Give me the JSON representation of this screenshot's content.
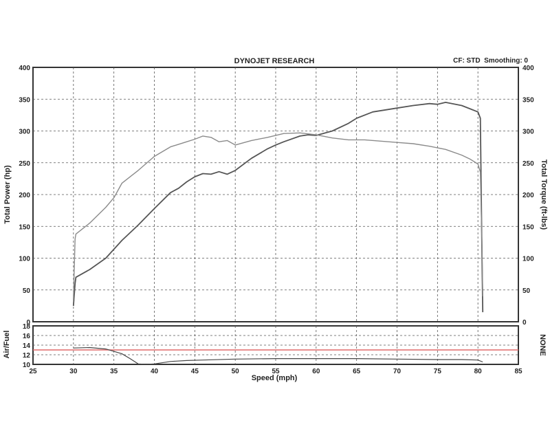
{
  "chart_data": [
    {
      "type": "line",
      "title": "DYNOJET RESEARCH",
      "header_right": "CF: STD  Smoothing: 0",
      "xlabel": "Speed (mph)",
      "ylabel": "Total Power (hp)",
      "y2label": "Total Torque (ft-lbs)",
      "xlim": [
        25,
        85
      ],
      "ylim": [
        0,
        400
      ],
      "y2lim": [
        0,
        400
      ],
      "x_ticks": [
        "25",
        "30",
        "35",
        "40",
        "45",
        "50",
        "55",
        "60",
        "65",
        "70",
        "75",
        "80",
        "85"
      ],
      "y_ticks": [
        "0",
        "50",
        "100",
        "150",
        "200",
        "250",
        "300",
        "350",
        "400"
      ],
      "y2_ticks": [
        "0",
        "50",
        "100",
        "150",
        "200",
        "250",
        "300",
        "350",
        "400"
      ],
      "grid": true,
      "series": [
        {
          "axis": "left",
          "color": "#555555",
          "points": [
            [
              30.0,
              25
            ],
            [
              30.2,
              60
            ],
            [
              30.3,
              70
            ],
            [
              32,
              82
            ],
            [
              34,
              100
            ],
            [
              36,
              128
            ],
            [
              38,
              152
            ],
            [
              40,
              178
            ],
            [
              42,
              203
            ],
            [
              43,
              210
            ],
            [
              44,
              220
            ],
            [
              45,
              228
            ],
            [
              46,
              233
            ],
            [
              47,
              232
            ],
            [
              48,
              236
            ],
            [
              49,
              232
            ],
            [
              50,
              238
            ],
            [
              52,
              257
            ],
            [
              54,
              272
            ],
            [
              55,
              278
            ],
            [
              56,
              283
            ],
            [
              58,
              292
            ],
            [
              59,
              294
            ],
            [
              60,
              293
            ],
            [
              62,
              300
            ],
            [
              64,
              312
            ],
            [
              65,
              320
            ],
            [
              67,
              330
            ],
            [
              70,
              336
            ],
            [
              72,
              340
            ],
            [
              74,
              343
            ],
            [
              75,
              342
            ],
            [
              76,
              345
            ],
            [
              78,
              340
            ],
            [
              79,
              335
            ],
            [
              80,
              330
            ],
            [
              80.3,
              320
            ],
            [
              80.5,
              100
            ],
            [
              80.6,
              15
            ]
          ]
        },
        {
          "axis": "right",
          "color": "#8a8a8a",
          "points": [
            [
              30.0,
              35
            ],
            [
              30.2,
              130
            ],
            [
              30.3,
              138
            ],
            [
              32,
              155
            ],
            [
              34,
              180
            ],
            [
              35,
              195
            ],
            [
              36,
              218
            ],
            [
              38,
              238
            ],
            [
              40,
              260
            ],
            [
              42,
              275
            ],
            [
              44,
              283
            ],
            [
              45,
              287
            ],
            [
              46,
              292
            ],
            [
              47,
              290
            ],
            [
              48,
              283
            ],
            [
              49,
              285
            ],
            [
              50,
              278
            ],
            [
              52,
              285
            ],
            [
              54,
              290
            ],
            [
              56,
              296
            ],
            [
              58,
              297
            ],
            [
              60,
              294
            ],
            [
              62,
              289
            ],
            [
              64,
              286
            ],
            [
              66,
              286
            ],
            [
              68,
              284
            ],
            [
              70,
              282
            ],
            [
              72,
              280
            ],
            [
              74,
              276
            ],
            [
              76,
              271
            ],
            [
              78,
              262
            ],
            [
              79,
              256
            ],
            [
              80,
              248
            ],
            [
              80.3,
              235
            ],
            [
              80.5,
              120
            ],
            [
              80.6,
              40
            ]
          ]
        }
      ]
    },
    {
      "type": "line",
      "ylabel": "Air/Fuel",
      "side_label": "NONE",
      "xlim": [
        25,
        85
      ],
      "ylim": [
        10,
        18
      ],
      "y_ticks": [
        "10",
        "12",
        "14",
        "16",
        "18"
      ],
      "grid": true,
      "reference_line": {
        "y": 13.0,
        "color": "#e06a6a"
      },
      "series": [
        {
          "color": "#444444",
          "points": [
            [
              30,
              13.4
            ],
            [
              32,
              13.5
            ],
            [
              34,
              13.2
            ],
            [
              36,
              12.2
            ],
            [
              37,
              11.2
            ],
            [
              38,
              10.1
            ],
            [
              39,
              10
            ],
            [
              40,
              10.1
            ],
            [
              42,
              10.6
            ],
            [
              44,
              10.8
            ],
            [
              46,
              10.9
            ],
            [
              50,
              11.1
            ],
            [
              55,
              11.2
            ],
            [
              60,
              11.2
            ],
            [
              65,
              11.2
            ],
            [
              70,
              11.1
            ],
            [
              75,
              11.0
            ],
            [
              78,
              11.0
            ],
            [
              80,
              10.9
            ],
            [
              80.6,
              10.5
            ]
          ]
        }
      ]
    }
  ]
}
